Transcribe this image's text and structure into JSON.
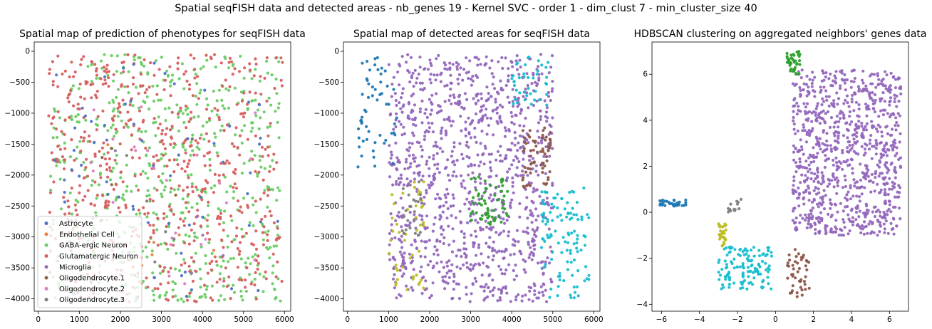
{
  "figure": {
    "suptitle": "Spatial seqFISH data and detected areas - nb_genes 19 - Kernel SVC - order 1 - dim_clust 7 - min_cluster_size 40"
  },
  "colors": {
    "Astrocyte": "#4c72c4",
    "Endothelial Cell": "#e8833a",
    "GABA-ergic Neuron": "#6acc64",
    "Glutamatergic Neuron": "#d65f5f",
    "Microglia": "#956cb4",
    "Oligodendrocyte.1": "#8c613c",
    "Oligodendrocyte.2": "#dc7ec0",
    "Oligodendrocyte.3": "#797979",
    "blue": "#1f77b4",
    "purple": "#9467bd",
    "cyan": "#17becf",
    "brown": "#8c564b",
    "green": "#2ca02c",
    "olive": "#bcbd22",
    "gray": "#7f7f7f"
  },
  "chart_data": [
    {
      "type": "scatter",
      "title": "Spatial map of prediction of phenotypes for seqFISH data",
      "xlim": [
        -100,
        6150
      ],
      "ylim": [
        -4200,
        150
      ],
      "xticks": [
        0,
        1000,
        2000,
        3000,
        4000,
        5000,
        6000
      ],
      "yticks": [
        0,
        -500,
        -1000,
        -1500,
        -2000,
        -2500,
        -3000,
        -3500,
        -4000
      ],
      "legend": {
        "placement": "lower-left",
        "entries": [
          "Astrocyte",
          "Endothelial Cell",
          "GABA-ergic Neuron",
          "Glutamatergic Neuron",
          "Microglia",
          "Oligodendrocyte.1",
          "Oligodendrocyte.2",
          "Oligodendrocyte.3"
        ]
      },
      "series": [
        {
          "name": "GABA-ergic Neuron",
          "color_key": "GABA-ergic Neuron",
          "n": 620,
          "region": {
            "x": [
              300,
              5900
            ],
            "y": [
              -4050,
              -50
            ]
          }
        },
        {
          "name": "Glutamatergic Neuron",
          "color_key": "Glutamatergic Neuron",
          "n": 620,
          "region": {
            "x": [
              250,
              5950
            ],
            "y": [
              -4050,
              -50
            ]
          }
        },
        {
          "name": "Astrocyte",
          "color_key": "Astrocyte",
          "n": 70,
          "region": {
            "x": [
              400,
              5900
            ],
            "y": [
              -4000,
              -150
            ]
          }
        },
        {
          "name": "Oligodendrocyte.2",
          "color_key": "Oligodendrocyte.2",
          "n": 25,
          "region": {
            "x": [
              1200,
              5500
            ],
            "y": [
              -3800,
              -800
            ]
          }
        },
        {
          "name": "Endothelial Cell",
          "color_key": "Endothelial Cell",
          "n": 8,
          "region": {
            "x": [
              1200,
              4500
            ],
            "y": [
              -3500,
              -1200
            ]
          }
        },
        {
          "name": "Oligodendrocyte.1",
          "color_key": "Oligodendrocyte.1",
          "n": 6,
          "region": {
            "x": [
              1500,
              4200
            ],
            "y": [
              -3000,
              -1500
            ]
          }
        },
        {
          "name": "Microglia",
          "color_key": "Microglia",
          "n": 6,
          "region": {
            "x": [
              1600,
              4800
            ],
            "y": [
              -3600,
              -1000
            ]
          }
        },
        {
          "name": "Oligodendrocyte.3",
          "color_key": "Oligodendrocyte.3",
          "n": 6,
          "region": {
            "x": [
              1300,
              4000
            ],
            "y": [
              -3500,
              -1300
            ]
          }
        }
      ]
    },
    {
      "type": "scatter",
      "title": "Spatial map of detected areas for seqFISH data",
      "xlim": [
        -100,
        6150
      ],
      "ylim": [
        -4200,
        150
      ],
      "xticks": [
        0,
        1000,
        2000,
        3000,
        4000,
        5000,
        6000
      ],
      "yticks": [
        0,
        -500,
        -1000,
        -1500,
        -2000,
        -2500,
        -3000,
        -3500,
        -4000
      ],
      "series": [
        {
          "color_key": "purple",
          "n": 1100,
          "region": {
            "x": [
              1000,
              5000
            ],
            "y": [
              -4050,
              -50
            ]
          }
        },
        {
          "color_key": "blue",
          "n": 55,
          "region": {
            "x": [
              250,
              1200
            ],
            "y": [
              -1900,
              -100
            ]
          }
        },
        {
          "color_key": "cyan",
          "n": 40,
          "region": {
            "x": [
              4000,
              4900
            ],
            "y": [
              -900,
              -50
            ]
          }
        },
        {
          "color_key": "cyan",
          "n": 110,
          "region": {
            "x": [
              4700,
              5900
            ],
            "y": [
              -4000,
              -2200
            ]
          }
        },
        {
          "color_key": "brown",
          "n": 65,
          "region": {
            "x": [
              4250,
              4950
            ],
            "y": [
              -2200,
              -1200
            ]
          }
        },
        {
          "color_key": "green",
          "n": 60,
          "region": {
            "x": [
              3000,
              3900
            ],
            "y": [
              -2800,
              -2000
            ]
          }
        },
        {
          "color_key": "olive",
          "n": 45,
          "region": {
            "x": [
              1000,
              1900
            ],
            "y": [
              -3900,
              -2100
            ]
          }
        },
        {
          "color_key": "gray",
          "n": 22,
          "region": {
            "x": [
              1300,
              1800
            ],
            "y": [
              -3000,
              -2100
            ]
          }
        }
      ]
    },
    {
      "type": "scatter",
      "title": "HDBSCAN clustering on aggregated neighbors' genes data",
      "xlim": [
        -6.5,
        7.0
      ],
      "ylim": [
        -4.3,
        7.4
      ],
      "xticks": [
        -6,
        -4,
        -2,
        0,
        2,
        4,
        6
      ],
      "yticks": [
        -4,
        -2,
        0,
        2,
        4,
        6
      ],
      "series": [
        {
          "color_key": "purple",
          "n": 900,
          "region": {
            "x": [
              0.9,
              6.6
            ],
            "y": [
              -1.0,
              6.2
            ]
          }
        },
        {
          "color_key": "green",
          "n": 40,
          "region": {
            "x": [
              0.6,
              1.3
            ],
            "y": [
              6.0,
              7.0
            ]
          }
        },
        {
          "color_key": "blue",
          "n": 30,
          "region": {
            "x": [
              -6.1,
              -4.7
            ],
            "y": [
              0.25,
              0.55
            ]
          }
        },
        {
          "color_key": "gray",
          "n": 15,
          "region": {
            "x": [
              -2.5,
              -1.8
            ],
            "y": [
              0.0,
              0.7
            ]
          }
        },
        {
          "color_key": "olive",
          "n": 30,
          "region": {
            "x": [
              -3.0,
              -2.6
            ],
            "y": [
              -1.5,
              -0.5
            ]
          }
        },
        {
          "color_key": "cyan",
          "n": 130,
          "region": {
            "x": [
              -3.0,
              -0.2
            ],
            "y": [
              -3.4,
              -1.5
            ]
          }
        },
        {
          "color_key": "brown",
          "n": 45,
          "region": {
            "x": [
              0.6,
              1.8
            ],
            "y": [
              -3.7,
              -1.5
            ]
          }
        }
      ]
    }
  ]
}
